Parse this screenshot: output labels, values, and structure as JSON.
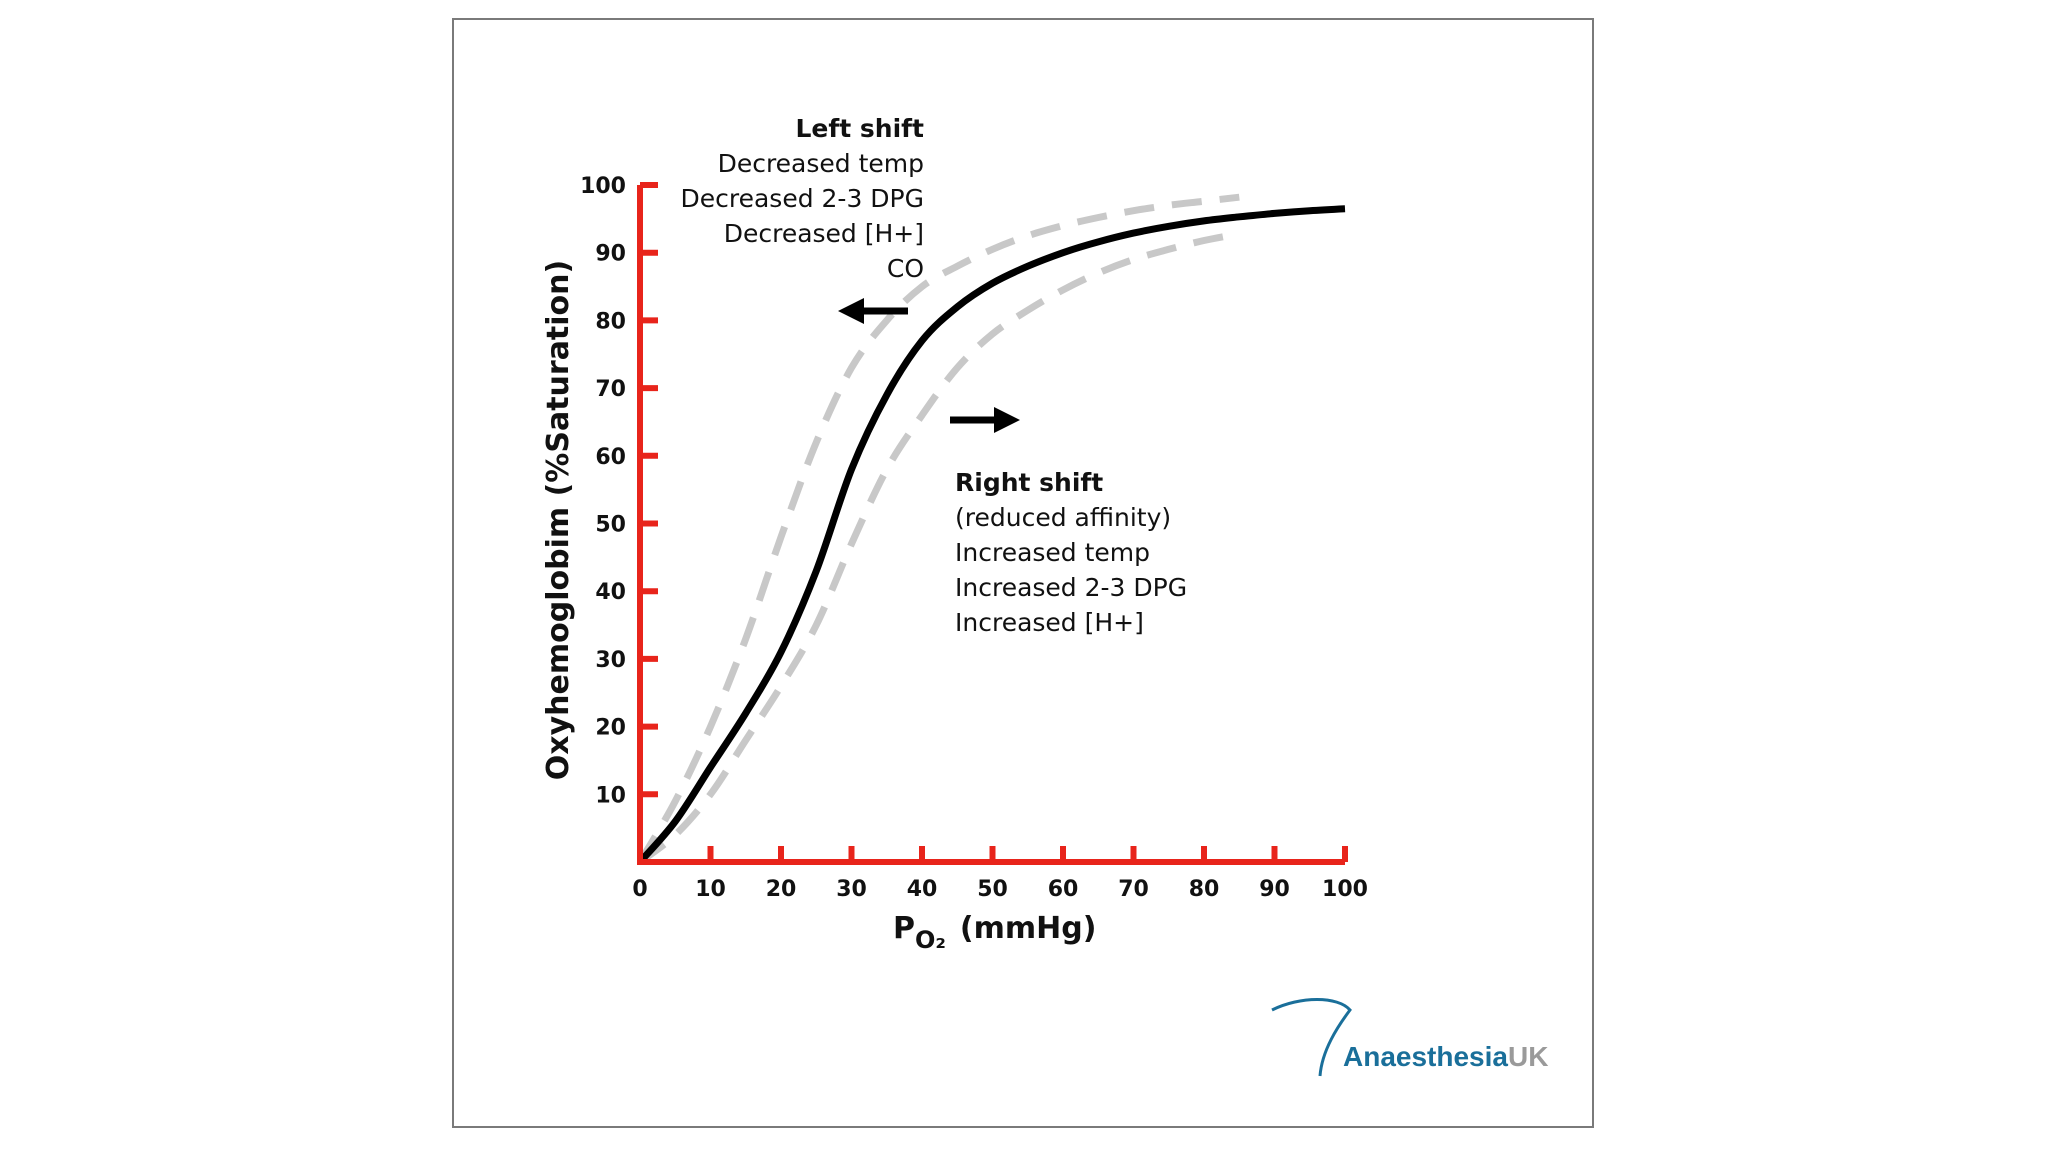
{
  "colors": {
    "axis": "#e8241b",
    "main_curve": "#000000",
    "shift_curves": "#c8c8c8",
    "logo_blue": "#1a6f9a",
    "logo_grey": "#9a9a9a"
  },
  "chart_data": {
    "type": "line",
    "xlabel": "P",
    "xlabel_subscript": "O₂",
    "xlabel_units": "(mmHg)",
    "ylabel": "Oxyhemoglobim  (%Saturation)",
    "xlim": [
      0,
      100
    ],
    "ylim": [
      0,
      100
    ],
    "x_ticks": [
      "0",
      "10",
      "20",
      "30",
      "40",
      "50",
      "60",
      "70",
      "80",
      "90",
      "100"
    ],
    "y_ticks": [
      "10",
      "20",
      "30",
      "40",
      "50",
      "60",
      "70",
      "80",
      "90",
      "100"
    ],
    "grid": false,
    "series": [
      {
        "style": "solid",
        "x": [
          0,
          5,
          10,
          15,
          20,
          25,
          30,
          35,
          40,
          45,
          50,
          55,
          60,
          65,
          70,
          75,
          80,
          85,
          90,
          95,
          100
        ],
        "y": [
          0,
          6,
          14,
          22,
          31,
          43,
          58,
          69,
          77,
          82,
          85.5,
          88,
          90,
          91.6,
          92.9,
          93.9,
          94.7,
          95.3,
          95.8,
          96.2,
          96.5
        ]
      },
      {
        "style": "dashed",
        "x": [
          0,
          5,
          10,
          15,
          20,
          25,
          30,
          35,
          40,
          45,
          50,
          55,
          60,
          65,
          70,
          75,
          80,
          85
        ],
        "y": [
          0,
          9,
          20,
          33,
          48,
          62,
          73,
          80,
          85,
          88,
          90.5,
          92.5,
          94,
          95.2,
          96.2,
          97,
          97.6,
          98.2
        ]
      },
      {
        "style": "dashed",
        "x": [
          0,
          5,
          10,
          15,
          20,
          25,
          30,
          35,
          40,
          45,
          50,
          55,
          60,
          65,
          70,
          75,
          80,
          85
        ],
        "y": [
          0,
          4,
          10,
          18,
          26,
          35,
          47,
          58,
          66,
          73,
          78,
          81.5,
          84.5,
          87,
          89,
          90.5,
          91.8,
          92.8
        ]
      }
    ],
    "annotations": {
      "left_shift": {
        "title": "Left shift",
        "lines": [
          "Decreased temp",
          "Decreased 2-3 DPG",
          "Decreased [H+]",
          "CO"
        ]
      },
      "right_shift": {
        "title": "Right shift",
        "lines": [
          "(reduced affinity)",
          "Increased temp",
          "Increased 2-3 DPG",
          "Increased [H+]"
        ]
      }
    }
  },
  "logo": {
    "name_part1": "Anaesthesia",
    "name_part2": "UK"
  }
}
